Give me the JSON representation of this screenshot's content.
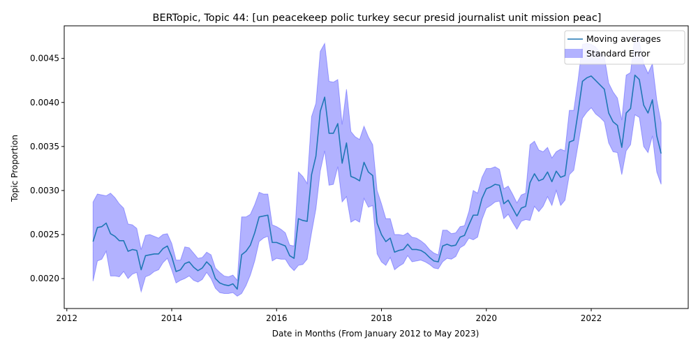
{
  "chart_data": {
    "type": "line",
    "title": "BERTopic, Topic 44: [un peacekeep polic turkey secur presid journalist unit mission peac]",
    "xlabel": "Date in Months (From January 2012 to May 2023)",
    "ylabel": "Topic Proportion",
    "xlim": [
      2011.95,
      2023.85
    ],
    "ylim": [
      0.00166,
      0.00487
    ],
    "x_ticks": [
      2012,
      2014,
      2016,
      2018,
      2020,
      2022
    ],
    "y_ticks": [
      0.002,
      0.0025,
      0.003,
      0.0035,
      0.004,
      0.0045
    ],
    "x_tick_labels": [
      "2012",
      "2014",
      "2016",
      "2018",
      "2020",
      "2022"
    ],
    "y_tick_labels": [
      "0.0020",
      "0.0025",
      "0.0030",
      "0.0035",
      "0.0040",
      "0.0045"
    ],
    "legend": {
      "placement": "top-right",
      "entries": [
        "Moving averages",
        "Standard Error"
      ]
    },
    "colors": {
      "line": "#1f77b4",
      "band": "#0000ff",
      "band_opacity": 0.3
    },
    "grid": false,
    "series": [
      {
        "name": "Moving averages",
        "x": [
          2012.5,
          2012.583,
          2012.667,
          2012.75,
          2012.833,
          2012.917,
          2013.0,
          2013.083,
          2013.167,
          2013.25,
          2013.333,
          2013.417,
          2013.5,
          2013.583,
          2013.667,
          2013.75,
          2013.833,
          2013.917,
          2014.0,
          2014.083,
          2014.167,
          2014.25,
          2014.333,
          2014.417,
          2014.5,
          2014.583,
          2014.667,
          2014.75,
          2014.833,
          2014.917,
          2015.0,
          2015.083,
          2015.167,
          2015.25,
          2015.333,
          2015.417,
          2015.5,
          2015.583,
          2015.667,
          2015.75,
          2015.833,
          2015.917,
          2016.0,
          2016.083,
          2016.167,
          2016.25,
          2016.333,
          2016.417,
          2016.5,
          2016.583,
          2016.667,
          2016.75,
          2016.833,
          2016.917,
          2017.0,
          2017.083,
          2017.167,
          2017.25,
          2017.333,
          2017.417,
          2017.5,
          2017.583,
          2017.667,
          2017.75,
          2017.833,
          2017.917,
          2018.0,
          2018.083,
          2018.167,
          2018.25,
          2018.333,
          2018.417,
          2018.5,
          2018.583,
          2018.667,
          2018.75,
          2018.833,
          2018.917,
          2019.0,
          2019.083,
          2019.167,
          2019.25,
          2019.333,
          2019.417,
          2019.5,
          2019.583,
          2019.667,
          2019.75,
          2019.833,
          2019.917,
          2020.0,
          2020.083,
          2020.167,
          2020.25,
          2020.333,
          2020.417,
          2020.5,
          2020.583,
          2020.667,
          2020.75,
          2020.833,
          2020.917,
          2021.0,
          2021.083,
          2021.167,
          2021.25,
          2021.333,
          2021.417,
          2021.5,
          2021.583,
          2021.667,
          2021.75,
          2021.833,
          2021.917,
          2022.0,
          2022.083,
          2022.167,
          2022.25,
          2022.333,
          2022.417,
          2022.5,
          2022.583,
          2022.667,
          2022.75,
          2022.833,
          2022.917,
          2023.0,
          2023.083,
          2023.167,
          2023.25,
          2023.333
        ],
        "values": [
          0.00242,
          0.00258,
          0.00259,
          0.00263,
          0.00251,
          0.00248,
          0.00243,
          0.00243,
          0.00231,
          0.00233,
          0.00232,
          0.0021,
          0.00226,
          0.00227,
          0.00228,
          0.00228,
          0.00234,
          0.00237,
          0.00225,
          0.00208,
          0.0021,
          0.00217,
          0.00219,
          0.00213,
          0.00209,
          0.00212,
          0.00219,
          0.00214,
          0.002,
          0.00195,
          0.00193,
          0.00192,
          0.00194,
          0.00188,
          0.00227,
          0.00231,
          0.00238,
          0.00252,
          0.0027,
          0.00271,
          0.00272,
          0.00241,
          0.00241,
          0.00239,
          0.00237,
          0.00226,
          0.00223,
          0.00268,
          0.00266,
          0.00265,
          0.00318,
          0.00339,
          0.0039,
          0.00406,
          0.00365,
          0.00365,
          0.00376,
          0.00331,
          0.00354,
          0.00316,
          0.00314,
          0.00311,
          0.00332,
          0.00321,
          0.00317,
          0.00263,
          0.0025,
          0.00242,
          0.00246,
          0.0023,
          0.00232,
          0.00233,
          0.00239,
          0.00233,
          0.00233,
          0.00232,
          0.00229,
          0.00224,
          0.0022,
          0.00219,
          0.00237,
          0.00239,
          0.00237,
          0.00238,
          0.00247,
          0.00249,
          0.00261,
          0.00272,
          0.00272,
          0.00291,
          0.00302,
          0.00304,
          0.00307,
          0.00306,
          0.00285,
          0.00289,
          0.0028,
          0.00271,
          0.0028,
          0.00282,
          0.00309,
          0.00319,
          0.00311,
          0.00313,
          0.00321,
          0.0031,
          0.00322,
          0.00315,
          0.00317,
          0.00355,
          0.00357,
          0.00389,
          0.00424,
          0.00428,
          0.0043,
          0.00425,
          0.0042,
          0.00415,
          0.00388,
          0.00378,
          0.00374,
          0.00349,
          0.00388,
          0.00393,
          0.00431,
          0.00426,
          0.00397,
          0.00388,
          0.00403,
          0.00362,
          0.00342
        ]
      },
      {
        "name": "Standard Error",
        "x": [
          2012.5,
          2012.583,
          2012.667,
          2012.75,
          2012.833,
          2012.917,
          2013.0,
          2013.083,
          2013.167,
          2013.25,
          2013.333,
          2013.417,
          2013.5,
          2013.583,
          2013.667,
          2013.75,
          2013.833,
          2013.917,
          2014.0,
          2014.083,
          2014.167,
          2014.25,
          2014.333,
          2014.417,
          2014.5,
          2014.583,
          2014.667,
          2014.75,
          2014.833,
          2014.917,
          2015.0,
          2015.083,
          2015.167,
          2015.25,
          2015.333,
          2015.417,
          2015.5,
          2015.583,
          2015.667,
          2015.75,
          2015.833,
          2015.917,
          2016.0,
          2016.083,
          2016.167,
          2016.25,
          2016.333,
          2016.417,
          2016.5,
          2016.583,
          2016.667,
          2016.75,
          2016.833,
          2016.917,
          2017.0,
          2017.083,
          2017.167,
          2017.25,
          2017.333,
          2017.417,
          2017.5,
          2017.583,
          2017.667,
          2017.75,
          2017.833,
          2017.917,
          2018.0,
          2018.083,
          2018.167,
          2018.25,
          2018.333,
          2018.417,
          2018.5,
          2018.583,
          2018.667,
          2018.75,
          2018.833,
          2018.917,
          2019.0,
          2019.083,
          2019.167,
          2019.25,
          2019.333,
          2019.417,
          2019.5,
          2019.583,
          2019.667,
          2019.75,
          2019.833,
          2019.917,
          2020.0,
          2020.083,
          2020.167,
          2020.25,
          2020.333,
          2020.417,
          2020.5,
          2020.583,
          2020.667,
          2020.75,
          2020.833,
          2020.917,
          2021.0,
          2021.083,
          2021.167,
          2021.25,
          2021.333,
          2021.417,
          2021.5,
          2021.583,
          2021.667,
          2021.75,
          2021.833,
          2021.917,
          2022.0,
          2022.083,
          2022.167,
          2022.25,
          2022.333,
          2022.417,
          2022.5,
          2022.583,
          2022.667,
          2022.75,
          2022.833,
          2022.917,
          2023.0,
          2023.083,
          2023.167,
          2023.25,
          2023.333
        ],
        "upper": [
          0.00287,
          0.00296,
          0.00295,
          0.00294,
          0.00297,
          0.00292,
          0.00285,
          0.0028,
          0.00262,
          0.00261,
          0.00257,
          0.00233,
          0.00249,
          0.0025,
          0.00248,
          0.00246,
          0.0025,
          0.00251,
          0.0024,
          0.00221,
          0.00221,
          0.00236,
          0.00235,
          0.00229,
          0.00223,
          0.00224,
          0.0023,
          0.00227,
          0.00212,
          0.00207,
          0.00203,
          0.00202,
          0.00204,
          0.00198,
          0.0027,
          0.0027,
          0.00273,
          0.00284,
          0.00298,
          0.00296,
          0.00296,
          0.00261,
          0.00259,
          0.00256,
          0.00252,
          0.00238,
          0.00237,
          0.00321,
          0.00316,
          0.00308,
          0.00384,
          0.00399,
          0.00458,
          0.00467,
          0.00424,
          0.00423,
          0.00426,
          0.00375,
          0.00415,
          0.00367,
          0.00361,
          0.00358,
          0.00373,
          0.00361,
          0.00352,
          0.003,
          0.00285,
          0.00268,
          0.00268,
          0.0025,
          0.0025,
          0.00249,
          0.00252,
          0.00247,
          0.00246,
          0.00243,
          0.00239,
          0.00233,
          0.00229,
          0.00227,
          0.00255,
          0.00255,
          0.00251,
          0.00252,
          0.00259,
          0.0026,
          0.00276,
          0.003,
          0.00297,
          0.00315,
          0.00325,
          0.00325,
          0.00327,
          0.00324,
          0.00302,
          0.00305,
          0.00296,
          0.00286,
          0.00295,
          0.00297,
          0.00352,
          0.00356,
          0.00346,
          0.00344,
          0.00349,
          0.00337,
          0.00344,
          0.00347,
          0.00345,
          0.00391,
          0.00391,
          0.00426,
          0.00466,
          0.00467,
          0.00466,
          0.00463,
          0.00457,
          0.00452,
          0.00422,
          0.00412,
          0.00405,
          0.0038,
          0.00431,
          0.00434,
          0.00476,
          0.00469,
          0.00444,
          0.00433,
          0.00444,
          0.00403,
          0.00377
        ],
        "lower": [
          0.00197,
          0.0022,
          0.00222,
          0.00231,
          0.00203,
          0.00203,
          0.00202,
          0.00208,
          0.002,
          0.00205,
          0.00207,
          0.00185,
          0.00202,
          0.00204,
          0.00208,
          0.0021,
          0.00218,
          0.00223,
          0.0021,
          0.00195,
          0.00198,
          0.002,
          0.00203,
          0.00198,
          0.00196,
          0.00199,
          0.00207,
          0.002,
          0.00189,
          0.00184,
          0.00183,
          0.00183,
          0.00184,
          0.0018,
          0.00183,
          0.00192,
          0.00204,
          0.0022,
          0.00242,
          0.00246,
          0.00248,
          0.0022,
          0.00223,
          0.00222,
          0.00222,
          0.00214,
          0.00209,
          0.00215,
          0.00216,
          0.00222,
          0.00252,
          0.00279,
          0.00322,
          0.00345,
          0.00306,
          0.00307,
          0.00327,
          0.00287,
          0.00293,
          0.00264,
          0.00267,
          0.00264,
          0.00291,
          0.00281,
          0.00283,
          0.00228,
          0.00219,
          0.00215,
          0.00224,
          0.0021,
          0.00214,
          0.00217,
          0.00226,
          0.00219,
          0.0022,
          0.00221,
          0.00219,
          0.00216,
          0.00212,
          0.00211,
          0.00219,
          0.00223,
          0.00222,
          0.00225,
          0.00235,
          0.00238,
          0.00246,
          0.00244,
          0.00247,
          0.00267,
          0.0028,
          0.00283,
          0.00287,
          0.00288,
          0.00268,
          0.00273,
          0.00264,
          0.00256,
          0.00265,
          0.00267,
          0.00266,
          0.00282,
          0.00276,
          0.00282,
          0.00293,
          0.00283,
          0.003,
          0.00283,
          0.00289,
          0.00318,
          0.00323,
          0.00352,
          0.00382,
          0.00389,
          0.00394,
          0.00387,
          0.00383,
          0.00378,
          0.00354,
          0.00344,
          0.00343,
          0.00318,
          0.00345,
          0.00352,
          0.00386,
          0.00383,
          0.0035,
          0.00343,
          0.00362,
          0.00321,
          0.00307
        ]
      }
    ]
  }
}
